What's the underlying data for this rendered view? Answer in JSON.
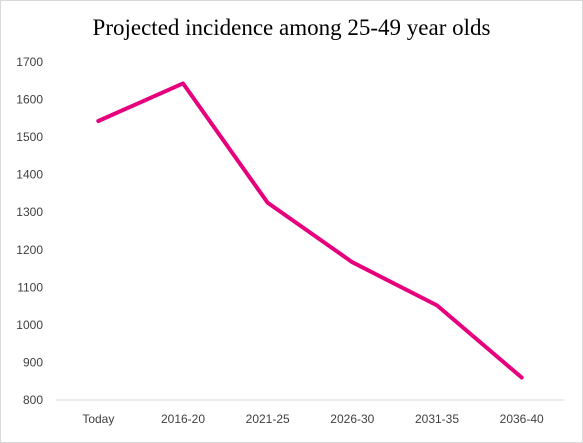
{
  "chart_data": {
    "type": "line",
    "title": "Projected incidence among 25-49 year olds",
    "xlabel": "",
    "ylabel": "",
    "categories": [
      "Today",
      "2016-20",
      "2021-25",
      "2026-30",
      "2031-35",
      "2036-40"
    ],
    "series": [
      {
        "values": [
          1543,
          1643,
          1325,
          1167,
          1052,
          860
        ],
        "color": "#e6007e"
      }
    ],
    "ylim": [
      800,
      1700
    ],
    "yticks": [
      800,
      900,
      1000,
      1100,
      1200,
      1300,
      1400,
      1500,
      1600,
      1700
    ],
    "grid": false,
    "legend": "none"
  }
}
